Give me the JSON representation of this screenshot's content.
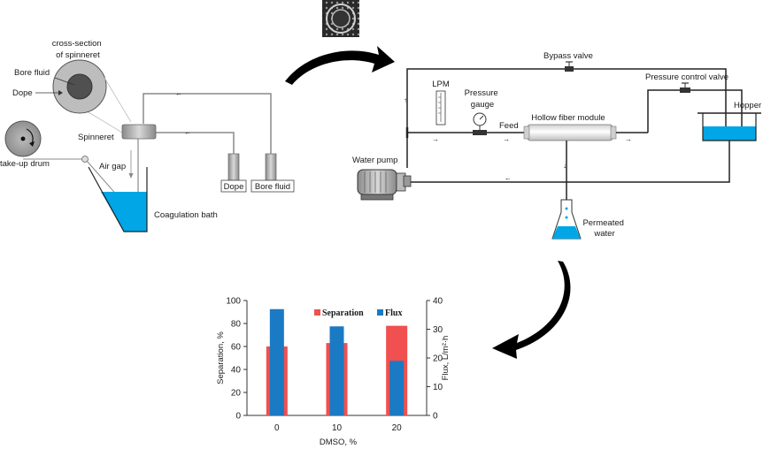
{
  "spinning": {
    "cross_section_label": "cross-section\nof spinneret",
    "bore_fluid_label": "Bore fluid",
    "dope_label": "Dope",
    "spinneret_label": "Spinneret",
    "take_up_drum_label": "take-up drum",
    "air_gap_label": "Air gap",
    "coagulation_bath_label": "Coagulation bath",
    "dope_tank_label": "Dope",
    "bore_fluid_tank_label": "Bore fluid"
  },
  "filtration": {
    "bypass_valve_label": "Bypass valve",
    "pressure_control_valve_label": "Pressure control valve",
    "hopper_label": "Hopper",
    "lpm_label": "LPM",
    "pressure_gauge_label": "Pressure\ngauge",
    "feed_label": "Feed",
    "hollow_fiber_module_label": "Hollow fiber module",
    "water_pump_label": "Water pump",
    "permeated_water_label": "Permeated\nwater"
  },
  "colors": {
    "water": "#00a6e6",
    "separation": "#f05050",
    "flux": "#1a7ac4",
    "arrow": "#000000"
  },
  "chart_data": {
    "type": "bar",
    "categories": [
      "0",
      "10",
      "20"
    ],
    "xlabel": "DMSO, %",
    "ylabel": "Separation, %",
    "y2label": "Flux, L/m²·h",
    "ylim": [
      0,
      100
    ],
    "y2lim": [
      0,
      40
    ],
    "yticks": [
      0,
      20,
      40,
      60,
      80,
      100
    ],
    "y2ticks": [
      0,
      10,
      20,
      30,
      40
    ],
    "legend_position": "top-right",
    "series": [
      {
        "name": "Separation",
        "axis": "left",
        "values": [
          60,
          63,
          78
        ]
      },
      {
        "name": "Flux",
        "axis": "right",
        "values": [
          37,
          31,
          19
        ]
      }
    ]
  }
}
